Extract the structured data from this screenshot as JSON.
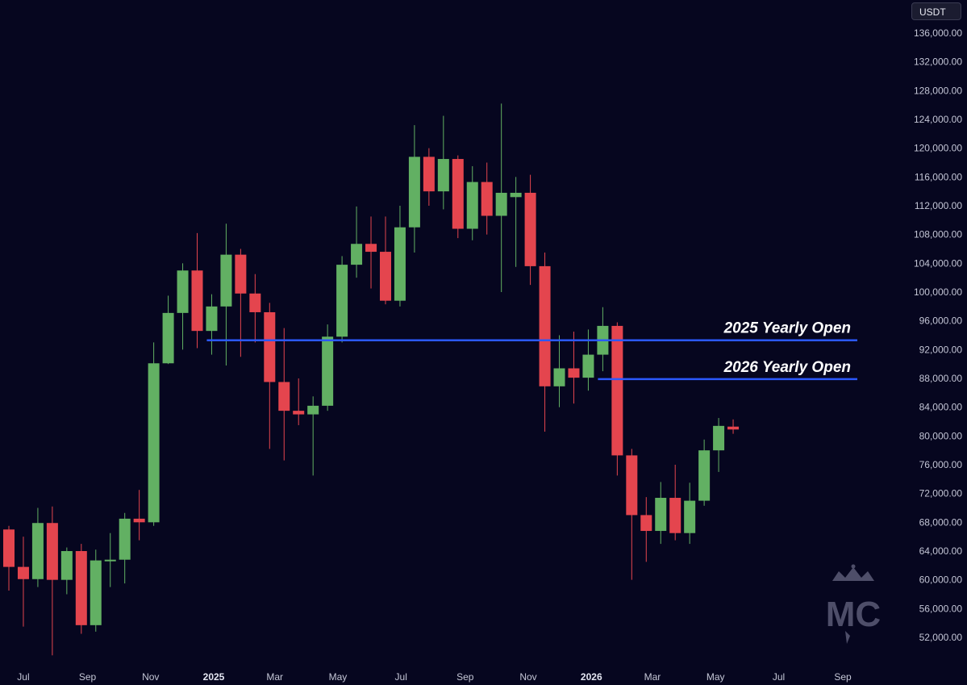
{
  "unit_label": "USDT",
  "chart_data": {
    "type": "candlestick",
    "unit": "USDT",
    "interval": "2 weeks",
    "grid": false,
    "ylim": [
      49000,
      139000
    ],
    "y_ticks": [
      "52,000.00",
      "56,000.00",
      "60,000.00",
      "64,000.00",
      "68,000.00",
      "72,000.00",
      "76,000.00",
      "80,000.00",
      "84,000.00",
      "88,000.00",
      "92,000.00",
      "96,000.00",
      "100,000.00",
      "104,000.00",
      "108,000.00",
      "112,000.00",
      "116,000.00",
      "120,000.00",
      "124,000.00",
      "128,000.00",
      "132,000.00",
      "136,000.00"
    ],
    "x_range": [
      "2024-06-17",
      "2026-09-15"
    ],
    "x_ticks": [
      {
        "label": "Jul",
        "date": "2024-07-01"
      },
      {
        "label": "Sep",
        "date": "2024-09-01"
      },
      {
        "label": "Nov",
        "date": "2024-11-01"
      },
      {
        "label": "2025",
        "date": "2025-01-01",
        "bold": true
      },
      {
        "label": "Mar",
        "date": "2025-03-01"
      },
      {
        "label": "May",
        "date": "2025-05-01"
      },
      {
        "label": "Jul",
        "date": "2025-07-01"
      },
      {
        "label": "Sep",
        "date": "2025-09-01"
      },
      {
        "label": "Nov",
        "date": "2025-11-01"
      },
      {
        "label": "2026",
        "date": "2026-01-01",
        "bold": true
      },
      {
        "label": "Mar",
        "date": "2026-03-01"
      },
      {
        "label": "May",
        "date": "2026-05-01"
      },
      {
        "label": "Jul",
        "date": "2026-07-01"
      },
      {
        "label": "Sep",
        "date": "2026-09-01"
      }
    ],
    "candles": [
      {
        "date": "2024-06-17",
        "open": 67000,
        "high": 67500,
        "low": 58500,
        "close": 61800
      },
      {
        "date": "2024-07-01",
        "open": 61800,
        "high": 66000,
        "low": 53500,
        "close": 60100
      },
      {
        "date": "2024-07-15",
        "open": 60100,
        "high": 70000,
        "low": 59000,
        "close": 67900
      },
      {
        "date": "2024-07-29",
        "open": 67900,
        "high": 70200,
        "low": 49500,
        "close": 60000
      },
      {
        "date": "2024-08-12",
        "open": 60000,
        "high": 64500,
        "low": 58000,
        "close": 64000
      },
      {
        "date": "2024-08-26",
        "open": 64000,
        "high": 65000,
        "low": 52500,
        "close": 53700
      },
      {
        "date": "2024-09-09",
        "open": 53700,
        "high": 64200,
        "low": 52800,
        "close": 62700
      },
      {
        "date": "2024-09-23",
        "open": 62700,
        "high": 66500,
        "low": 59000,
        "close": 62800
      },
      {
        "date": "2024-10-07",
        "open": 62800,
        "high": 69300,
        "low": 59500,
        "close": 68500
      },
      {
        "date": "2024-10-21",
        "open": 68500,
        "high": 72500,
        "low": 65500,
        "close": 68000
      },
      {
        "date": "2024-11-04",
        "open": 68000,
        "high": 93000,
        "low": 67500,
        "close": 90100
      },
      {
        "date": "2024-11-18",
        "open": 90100,
        "high": 99500,
        "low": 90000,
        "close": 97100
      },
      {
        "date": "2024-12-02",
        "open": 97100,
        "high": 104000,
        "low": 92000,
        "close": 103000
      },
      {
        "date": "2024-12-16",
        "open": 103000,
        "high": 108200,
        "low": 92200,
        "close": 94600
      },
      {
        "date": "2024-12-30",
        "open": 94600,
        "high": 99700,
        "low": 91300,
        "close": 98000
      },
      {
        "date": "2025-01-13",
        "open": 98000,
        "high": 109500,
        "low": 89800,
        "close": 105200
      },
      {
        "date": "2025-01-27",
        "open": 105200,
        "high": 106000,
        "low": 91000,
        "close": 99800
      },
      {
        "date": "2025-02-10",
        "open": 99800,
        "high": 102500,
        "low": 93000,
        "close": 97200
      },
      {
        "date": "2025-02-24",
        "open": 97200,
        "high": 98500,
        "low": 78200,
        "close": 87500
      },
      {
        "date": "2025-03-10",
        "open": 87500,
        "high": 95000,
        "low": 76600,
        "close": 83500
      },
      {
        "date": "2025-03-24",
        "open": 83500,
        "high": 88000,
        "low": 81500,
        "close": 83000
      },
      {
        "date": "2025-04-07",
        "open": 83000,
        "high": 85500,
        "low": 74500,
        "close": 84200
      },
      {
        "date": "2025-04-21",
        "open": 84200,
        "high": 95500,
        "low": 83500,
        "close": 93800
      },
      {
        "date": "2025-05-05",
        "open": 93800,
        "high": 105000,
        "low": 93000,
        "close": 103800
      },
      {
        "date": "2025-05-19",
        "open": 103800,
        "high": 111900,
        "low": 102000,
        "close": 106700
      },
      {
        "date": "2025-06-02",
        "open": 106700,
        "high": 110500,
        "low": 100500,
        "close": 105600
      },
      {
        "date": "2025-06-16",
        "open": 105600,
        "high": 110500,
        "low": 98300,
        "close": 98800
      },
      {
        "date": "2025-06-30",
        "open": 98800,
        "high": 112000,
        "low": 98000,
        "close": 109000
      },
      {
        "date": "2025-07-14",
        "open": 109000,
        "high": 123200,
        "low": 105500,
        "close": 118800
      },
      {
        "date": "2025-07-28",
        "open": 118800,
        "high": 120000,
        "low": 112000,
        "close": 114000
      },
      {
        "date": "2025-08-11",
        "open": 114000,
        "high": 124500,
        "low": 111500,
        "close": 118500
      },
      {
        "date": "2025-08-25",
        "open": 118500,
        "high": 119000,
        "low": 107500,
        "close": 108800
      },
      {
        "date": "2025-09-08",
        "open": 108800,
        "high": 117500,
        "low": 107200,
        "close": 115300
      },
      {
        "date": "2025-09-22",
        "open": 115300,
        "high": 118000,
        "low": 108000,
        "close": 110600
      },
      {
        "date": "2025-10-06",
        "open": 110600,
        "high": 126200,
        "low": 100000,
        "close": 113800
      },
      {
        "date": "2025-10-20",
        "open": 113200,
        "high": 116000,
        "low": 103500,
        "close": 113800
      },
      {
        "date": "2025-11-03",
        "open": 113800,
        "high": 116300,
        "low": 101000,
        "close": 103600
      },
      {
        "date": "2025-11-17",
        "open": 103600,
        "high": 105500,
        "low": 80600,
        "close": 86900
      },
      {
        "date": "2025-12-01",
        "open": 86900,
        "high": 94000,
        "low": 84000,
        "close": 89400
      },
      {
        "date": "2025-12-15",
        "open": 89400,
        "high": 94500,
        "low": 84500,
        "close": 88100
      },
      {
        "date": "2025-12-29",
        "open": 88100,
        "high": 94800,
        "low": 86300,
        "close": 91300
      },
      {
        "date": "2026-01-12",
        "open": 91300,
        "high": 97900,
        "low": 89000,
        "close": 95300
      },
      {
        "date": "2026-01-26",
        "open": 95300,
        "high": 95800,
        "low": 74500,
        "close": 77300
      },
      {
        "date": "2026-02-09",
        "open": 77300,
        "high": 78200,
        "low": 60000,
        "close": 69000
      },
      {
        "date": "2026-02-23",
        "open": 69000,
        "high": 71500,
        "low": 62500,
        "close": 66800
      },
      {
        "date": "2026-03-09",
        "open": 66800,
        "high": 73600,
        "low": 65000,
        "close": 71400
      },
      {
        "date": "2026-03-23",
        "open": 71400,
        "high": 76000,
        "low": 65500,
        "close": 66500
      },
      {
        "date": "2026-04-06",
        "open": 66500,
        "high": 73500,
        "low": 65000,
        "close": 71000
      },
      {
        "date": "2026-04-20",
        "open": 71000,
        "high": 79500,
        "low": 70300,
        "close": 78000
      },
      {
        "date": "2026-05-04",
        "open": 78000,
        "high": 82500,
        "low": 75000,
        "close": 81400
      },
      {
        "date": "2026-05-18",
        "open": 81300,
        "high": 82300,
        "low": 80300,
        "close": 80900
      }
    ],
    "annotations": [
      {
        "label": "2025 Yearly Open",
        "price": 93300,
        "from": "2024-12-30",
        "color": "#2b59ff"
      },
      {
        "label": "2026 Yearly Open",
        "price": 87900,
        "from": "2026-01-12",
        "color": "#2b59ff"
      }
    ],
    "colors": {
      "up": "#62b063",
      "down": "#e4454e",
      "background": "#06061f",
      "axis_text": "#c4c6d6"
    }
  },
  "watermark": {
    "icon": "crown-mc-logo",
    "text": "MC"
  }
}
